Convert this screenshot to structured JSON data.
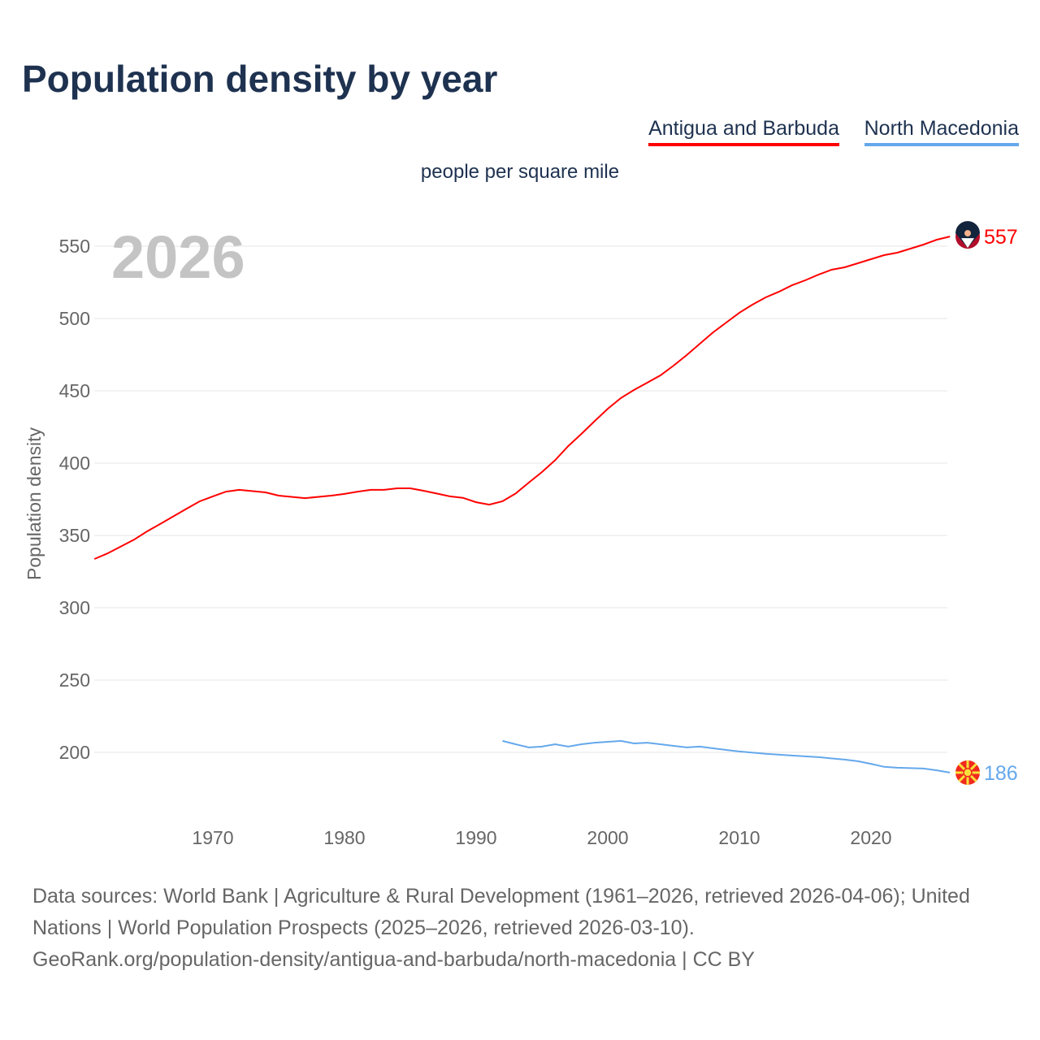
{
  "title": "Population density by year",
  "subtitle": "people per square mile",
  "footer": {
    "line1": "Data sources: World Bank | Agriculture & Rural Development (1961–2026, retrieved 2026-04-06); United Nations | World Population Prospects (2025–2026, retrieved 2026-03-10).",
    "line2": "GeoRank.org/population-density/antigua-and-barbuda/north-macedonia | CC BY"
  },
  "chart_data": {
    "type": "line",
    "title": "Population density by year",
    "ylabel": "Population density",
    "xlabel": "",
    "unit": "people per square mile",
    "year_label": "2026",
    "xlim": [
      1961,
      2026
    ],
    "ylim": [
      160,
      575
    ],
    "xticks": [
      1970,
      1980,
      1990,
      2000,
      2010,
      2020
    ],
    "yticks": [
      200,
      250,
      300,
      350,
      400,
      450,
      500,
      550
    ],
    "grid": true,
    "legend_position": "top-right",
    "series": [
      {
        "name": "Antigua and Barbuda",
        "color": "#ff0000",
        "end_label": "557",
        "flag": "antigua-flag",
        "x": [
          1961,
          1962,
          1964,
          1965,
          1966,
          1968,
          1969,
          1970,
          1971,
          1972,
          1974,
          1975,
          1977,
          1979,
          1980,
          1981,
          1982,
          1983,
          1984,
          1985,
          1986,
          1987,
          1988,
          1989,
          1990,
          1991,
          1992,
          1993,
          1994,
          1995,
          1996,
          1997,
          1998,
          1999,
          2000,
          2001,
          2002,
          2003,
          2004,
          2005,
          2006,
          2007,
          2008,
          2009,
          2010,
          2011,
          2012,
          2013,
          2014,
          2015,
          2016,
          2017,
          2018,
          2019,
          2020,
          2021,
          2022,
          2023,
          2024,
          2025,
          2026
        ],
        "y": [
          333.7,
          337.6,
          347,
          352.8,
          357.9,
          368.5,
          373.6,
          377,
          380.3,
          381.5,
          379.8,
          377.5,
          375.8,
          377.5,
          378.7,
          380.3,
          381.5,
          381.5,
          382.6,
          382.6,
          380.9,
          379,
          377,
          376,
          373,
          371.3,
          373.6,
          379,
          386.5,
          393.8,
          402,
          411.8,
          420.2,
          429,
          437.6,
          445,
          450.6,
          455.6,
          460.7,
          467.4,
          474.7,
          482.6,
          490.4,
          497.2,
          504,
          509.6,
          514.6,
          518.5,
          523,
          526.4,
          530.3,
          533.7,
          535.4,
          538.2,
          541,
          543.8,
          545.5,
          548.3,
          551.1,
          554.5,
          556.7
        ]
      },
      {
        "name": "North Macedonia",
        "color": "#64a8ec",
        "end_label": "186",
        "flag": "north-macedonia-flag",
        "x": [
          1992,
          1993,
          1994,
          1995,
          1996,
          1997,
          1998,
          1999,
          2000,
          2001,
          2002,
          2003,
          2004,
          2005,
          2006,
          2007,
          2008,
          2009,
          2010,
          2012,
          2014,
          2016,
          2018,
          2019,
          2020,
          2021,
          2022,
          2024,
          2025,
          2026
        ],
        "y": [
          207.9,
          205.6,
          203.4,
          204,
          205.6,
          204,
          205.6,
          206.7,
          207.3,
          207.9,
          206.2,
          206.7,
          205.6,
          204.5,
          203.4,
          204,
          202.8,
          201.7,
          200.6,
          199,
          197.8,
          196.7,
          195,
          193.9,
          192.1,
          190,
          189.4,
          188.8,
          187.6,
          186
        ]
      }
    ]
  }
}
